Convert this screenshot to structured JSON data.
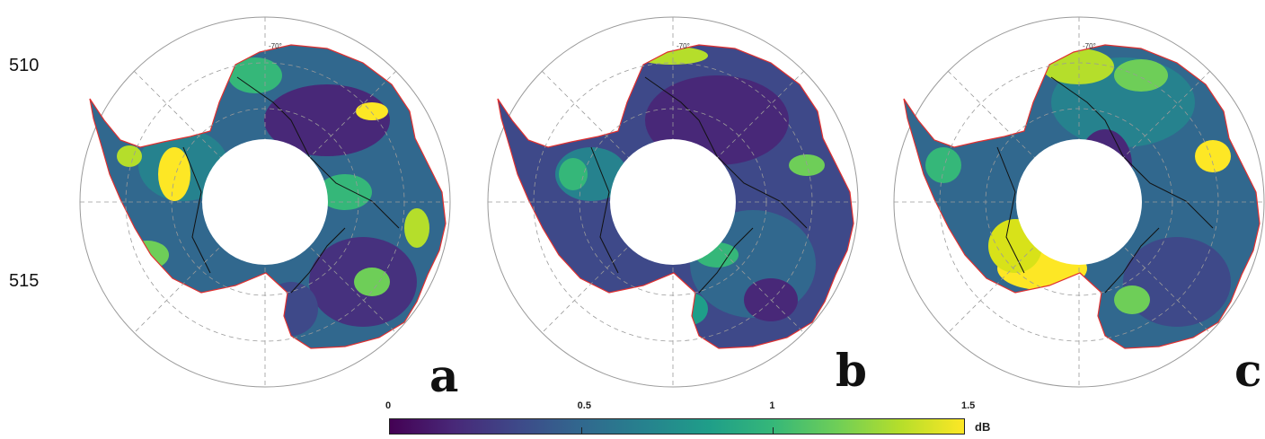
{
  "line_numbers": [
    "510",
    "515"
  ],
  "panels": [
    {
      "letter": "a",
      "latitude_label": "-70°"
    },
    {
      "letter": "b",
      "latitude_label": "-70°"
    },
    {
      "letter": "c",
      "latitude_label": "-70°"
    }
  ],
  "colorbar": {
    "ticks": [
      "0",
      "0.5",
      "1",
      "1.5"
    ],
    "tick_values": [
      0,
      0.5,
      1,
      1.5
    ],
    "range": [
      0,
      1.5
    ],
    "unit": "dB",
    "colormap": [
      "#440154",
      "#482878",
      "#3e4989",
      "#31688e",
      "#26828e",
      "#1f9e89",
      "#35b779",
      "#6ece58",
      "#b5de2b",
      "#fde725"
    ]
  },
  "colors": {
    "coastline": "#e03030",
    "contour": "#111111",
    "graticule": "#9a9a9a",
    "background": "#ffffff"
  }
}
